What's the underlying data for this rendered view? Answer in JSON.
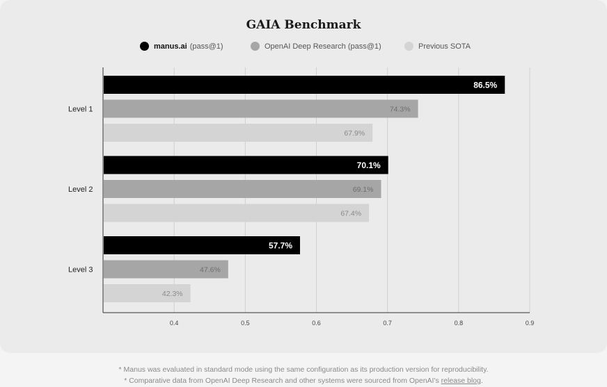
{
  "chart_data": {
    "type": "bar",
    "orientation": "horizontal",
    "title": "GAIA Benchmark",
    "categories": [
      "Level 1",
      "Level 2",
      "Level 3"
    ],
    "series": [
      {
        "name": "manus.ai",
        "name_suffix": "(pass@1)",
        "color": "#000000",
        "label_color": "#ffffff",
        "values": [
          86.5,
          70.1,
          57.7
        ]
      },
      {
        "name": "OpenAI Deep Research (pass@1)",
        "color": "#a6a6a6",
        "label_color": "#6e6e6e",
        "values": [
          74.3,
          69.1,
          47.6
        ]
      },
      {
        "name": "Previous SOTA",
        "color": "#d4d4d4",
        "label_color": "#8a8a8a",
        "values": [
          67.9,
          67.4,
          42.3
        ]
      }
    ],
    "x_ticks": [
      0.4,
      0.5,
      0.6,
      0.7,
      0.8,
      0.9
    ],
    "xlim": [
      0.3,
      0.9
    ],
    "value_format": "percent",
    "grid": true,
    "legend_position": "top-center"
  },
  "footnotes": {
    "line1": "* Manus was evaluated in standard mode using the same configuration as its production version for reproducibility.",
    "line2_prefix": "* Comparative data from OpenAI Deep Research and other systems were sourced from OpenAI's ",
    "line2_link": "release blog",
    "line2_suffix": "."
  }
}
